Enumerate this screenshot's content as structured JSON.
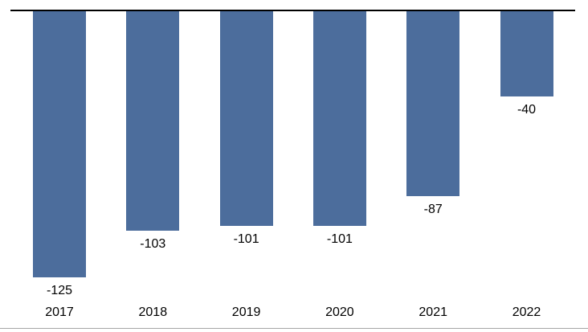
{
  "chart_data": {
    "type": "bar",
    "title": "",
    "xlabel": "",
    "ylabel": "",
    "categories": [
      "2017",
      "2018",
      "2019",
      "2020",
      "2021",
      "2022"
    ],
    "values": [
      -125,
      -103,
      -101,
      -101,
      -87,
      -40
    ],
    "data_labels": [
      "-125",
      "-103",
      "-101",
      "-101",
      "-87",
      "-40"
    ],
    "ylim": [
      -130,
      0
    ],
    "grid": false,
    "legend": false,
    "bar_color": "#4C6D9C",
    "zero_line_color": "#000000",
    "baseline_color": "#A6A6A6",
    "label_color": "#000000"
  }
}
